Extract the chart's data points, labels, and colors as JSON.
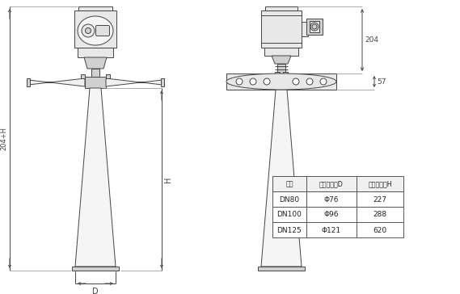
{
  "bg_color": "#ffffff",
  "line_color": "#444444",
  "gray_light": "#e8e8e8",
  "gray_mid": "#d0d0d0",
  "gray_dark": "#b0b0b0",
  "table": {
    "headers": [
      "法兰",
      "喇叭口直径D",
      "喇叭口高度H"
    ],
    "rows": [
      [
        "DN80",
        "Φ76",
        "227"
      ],
      [
        "DN100",
        "Φ96",
        "288"
      ],
      [
        "DN125",
        "Φ121",
        "620"
      ]
    ]
  },
  "dim_labels": {
    "label_204H": "204+H",
    "label_H": "H",
    "label_D": "D",
    "label_204": "204",
    "label_57": "57"
  }
}
